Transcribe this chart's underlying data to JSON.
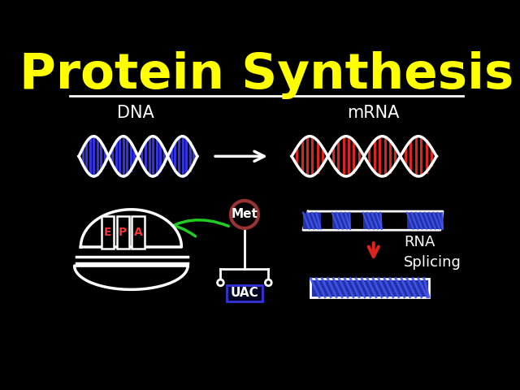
{
  "title": "Protein Synthesis",
  "title_color": "#FFFF00",
  "title_fontsize": 44,
  "bg_color": "#000000",
  "white": "#FFFFFF",
  "dna_label": "DNA",
  "mrna_label": "mRNA",
  "met_label": "Met",
  "uac_label": "UAC",
  "rna_splicing_label": "RNA\nSplicing",
  "epa_labels": [
    "E",
    "P",
    "A"
  ],
  "epa_color": "#FF3333",
  "dna_blue": "#3333DD",
  "mrna_red": "#DD2222",
  "green": "#22CC22",
  "dark_red_circle": "#993333",
  "blue_stripe": "#2233AA",
  "blue_bright": "#4455EE"
}
